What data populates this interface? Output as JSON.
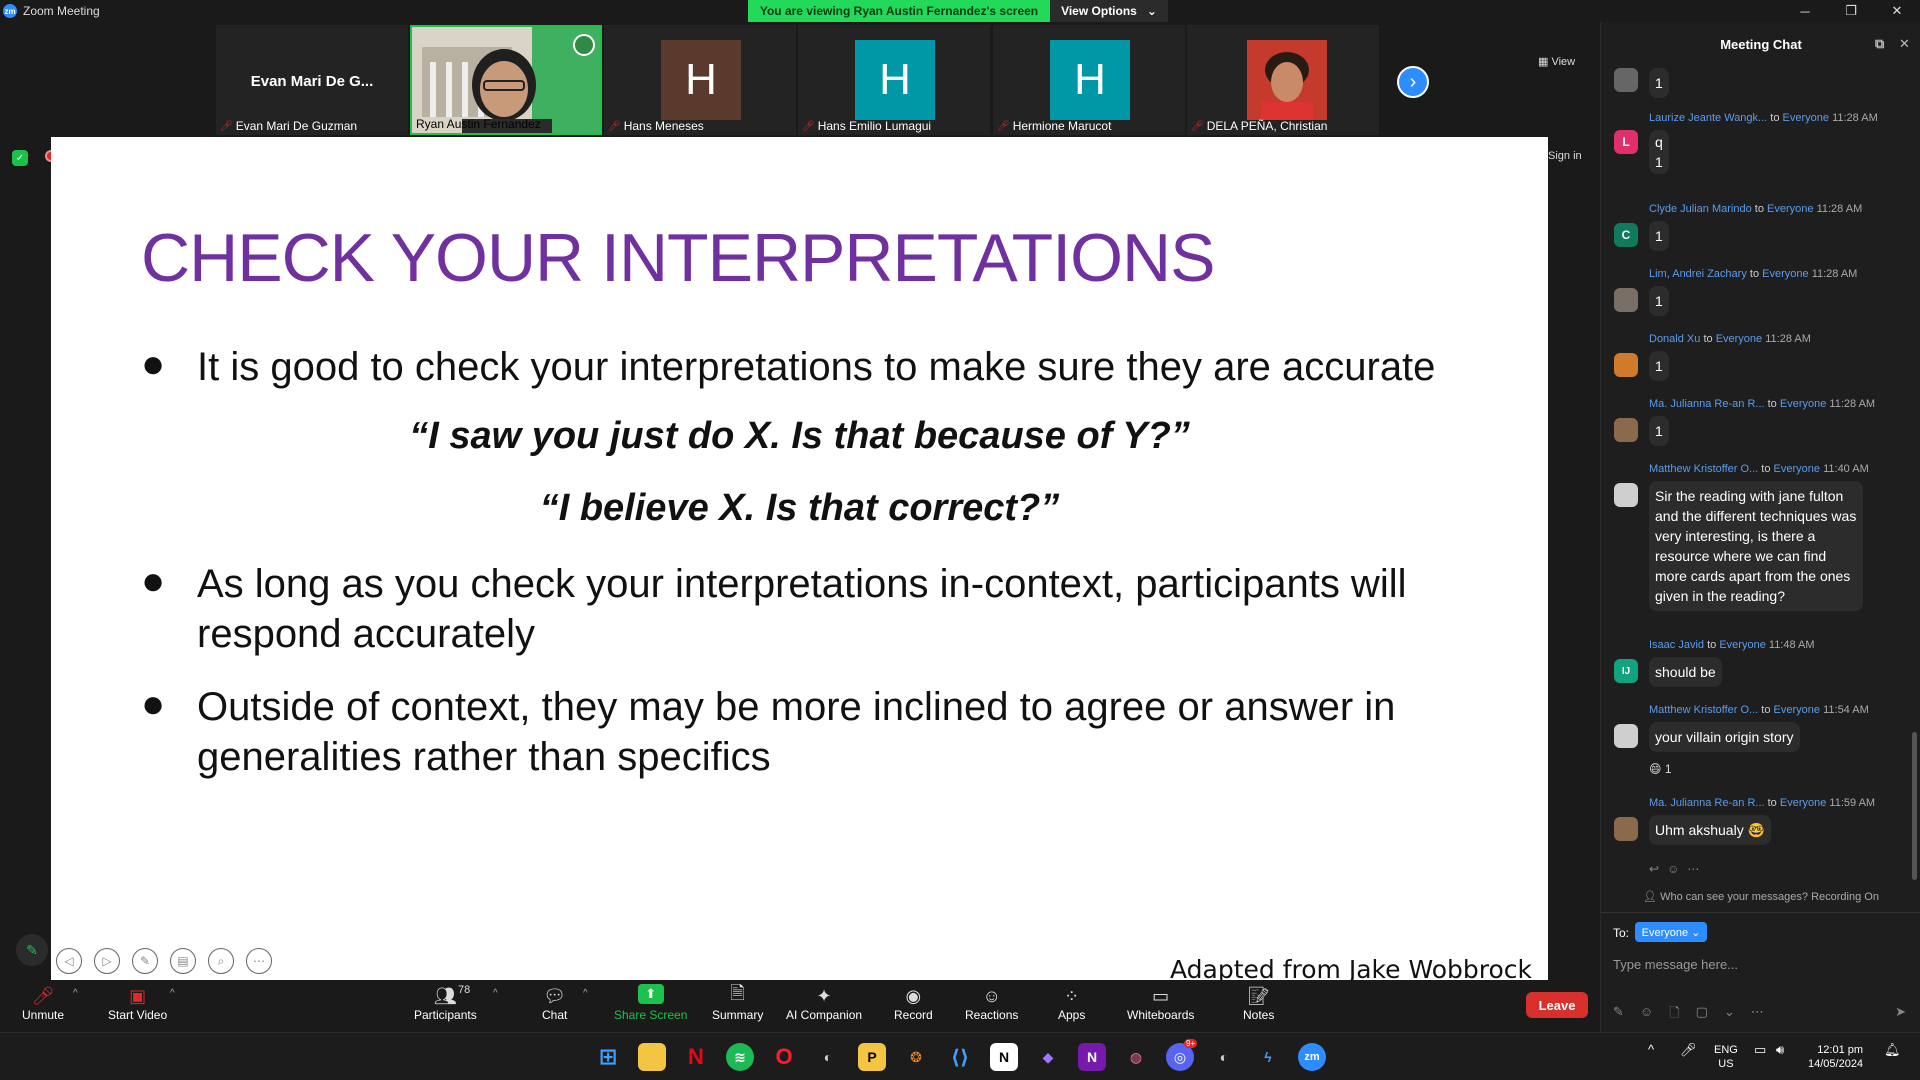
{
  "window": {
    "title": "Zoom Meeting",
    "logo": "zm"
  },
  "banner": {
    "viewing": "You are viewing Ryan Austin Fernandez's screen",
    "view_options": "View Options"
  },
  "window_controls": {
    "minimize": "─",
    "restore": "❐",
    "close": "✕"
  },
  "filmstrip": {
    "tiles": [
      {
        "big_name": "Evan Mari De G...",
        "name": "Evan Mari De Guzman",
        "muted": true
      },
      {
        "name": "Ryan Austin Fernandez",
        "muted": false,
        "active": true
      },
      {
        "initial": "H",
        "name": "Hans Meneses",
        "muted": true,
        "color": "#5b3a2e"
      },
      {
        "initial": "H",
        "name": "Hans Emilio Lumagui",
        "muted": true,
        "color": "#0097a7"
      },
      {
        "initial": "H",
        "name": "Hermione Marucot",
        "muted": true,
        "color": "#0097a7"
      },
      {
        "name": "DELA PEÑA, Christian",
        "muted": true
      }
    ],
    "view_label": "View"
  },
  "share": {
    "sign_in": "Sign in"
  },
  "slide": {
    "title": "CHECK YOUR INTERPRETATIONS",
    "bullet_1": "It is good to check your interpretations to make sure they are accurate",
    "quote_1": "“I saw you just do X. Is that because of Y?”",
    "quote_2": "“I believe X. Is that correct?”",
    "bullet_2": "As long as you check your interpretations in-context, participants will respond accurately",
    "bullet_3": "Outside of context, they may be more inclined to agree or answer in generalities rather than specifics",
    "credit": "Adapted from Jake Wobbrock",
    "bullet_glyph": "●"
  },
  "toolbar": {
    "unmute": "Unmute",
    "start_video": "Start Video",
    "participants": "Participants",
    "participants_count": "78",
    "chat": "Chat",
    "share_screen": "Share Screen",
    "summary": "Summary",
    "ai_companion": "AI Companion",
    "record": "Record",
    "reactions": "Reactions",
    "apps": "Apps",
    "whiteboards": "Whiteboards",
    "notes": "Notes",
    "leave": "Leave"
  },
  "chat": {
    "title": "Meeting Chat",
    "to_word": "to",
    "everyone": "Everyone",
    "messages": [
      {
        "sender": "",
        "time": "",
        "text": "1",
        "avatar": "",
        "avatar_color": "#666"
      },
      {
        "sender": "Laurize Jeante Wangk...",
        "time": "11:28 AM",
        "text": "q",
        "text2": "1",
        "avatar": "L",
        "avatar_color": "#e0306c"
      },
      {
        "sender": "Clyde Julian Marindo",
        "time": "11:28 AM",
        "text": "1",
        "avatar": "C",
        "avatar_color": "#0f7b5c"
      },
      {
        "sender": "Lim, Andrei Zachary",
        "time": "11:28 AM",
        "text": "1",
        "avatar": "",
        "avatar_color": "#7a6f66"
      },
      {
        "sender": "Donald Xu",
        "time": "11:28 AM",
        "text": "1",
        "avatar": "",
        "avatar_color": "#d07a2c"
      },
      {
        "sender": "Ma. Julianna Re-an R...",
        "time": "11:28 AM",
        "text": "1",
        "avatar": "",
        "avatar_color": "#8a6a4a"
      },
      {
        "sender": "Matthew Kristoffer O...",
        "time": "11:40 AM",
        "text": "Sir the reading with jane fulton and the different techniques was very interesting, is there a resource where we can find more cards apart from the ones given in the reading?",
        "avatar": "",
        "avatar_color": "#cfcfcf"
      },
      {
        "sender": "Isaac Javid",
        "time": "11:48 AM",
        "text": "should be",
        "avatar": "IJ",
        "avatar_color": "#11a37f"
      },
      {
        "sender": "Matthew Kristoffer O...",
        "time": "11:54 AM",
        "text": "your villain origin story",
        "reaction": "😄 1",
        "avatar": "",
        "avatar_color": "#cfcfcf"
      },
      {
        "sender": "Ma. Julianna Re-an R...",
        "time": "11:59 AM",
        "text": "Uhm akshualy 🤓",
        "avatar": "",
        "avatar_color": "#8a6a4a"
      }
    ],
    "who_can_see": "Who can see your messages? Recording On",
    "to_label": "To:",
    "to_target": "Everyone ⌄",
    "input_placeholder": "Type message here..."
  },
  "taskbar": {
    "lang": "ENG",
    "region": "US",
    "time": "12:01 pm",
    "date": "14/05/2024",
    "discord_badge": "9+"
  }
}
